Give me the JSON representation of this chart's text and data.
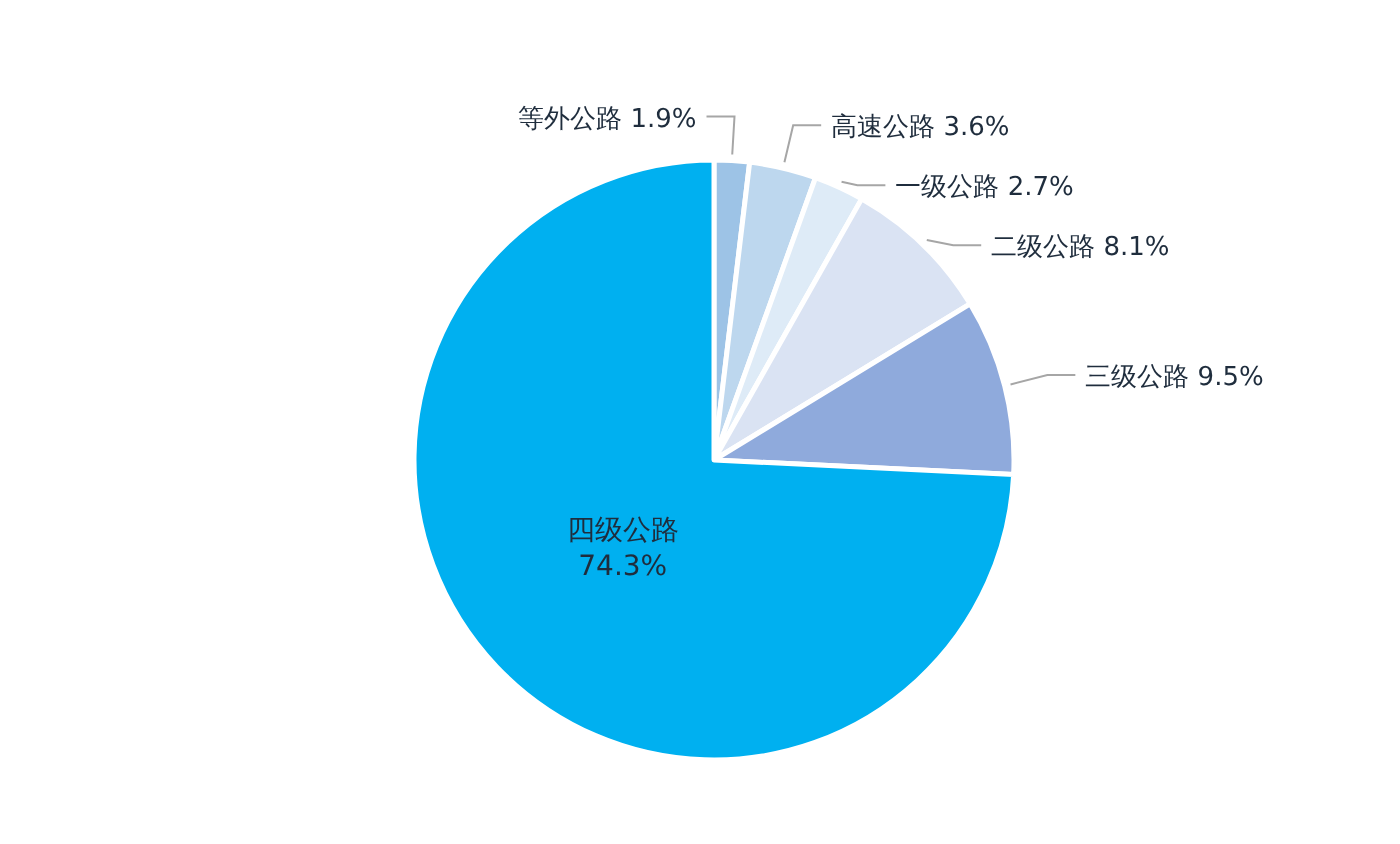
{
  "chart_data": {
    "type": "pie",
    "categories": [
      "等外公路",
      "高速公路",
      "一级公路",
      "二级公路",
      "三级公路",
      "四级公路"
    ],
    "values": [
      1.9,
      3.6,
      2.7,
      8.1,
      9.5,
      74.3
    ],
    "value_labels": [
      "1.9%",
      "3.6%",
      "2.7%",
      "8.1%",
      "9.5%",
      "74.3%"
    ],
    "colors": [
      "#9dc3e6",
      "#bdd7ee",
      "#deebf7",
      "#dae3f3",
      "#8faadc",
      "#00b0f0"
    ]
  }
}
